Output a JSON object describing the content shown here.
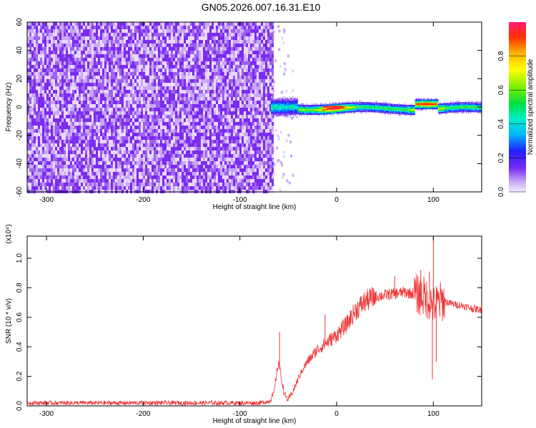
{
  "title": "GN05.2026.007.16.31.E10",
  "chart_data": [
    {
      "type": "heatmap",
      "xlabel": "Height of straight line (km)",
      "ylabel": "Frequency (Hz)",
      "xlim": [
        -320,
        150
      ],
      "ylim": [
        -60,
        60
      ],
      "xticks": [
        -300,
        -200,
        -100,
        0,
        100
      ],
      "yticks": [
        -60,
        -40,
        -20,
        0,
        20,
        40,
        60
      ],
      "colorbar": {
        "label": "Normalized spectral amplitude",
        "range": [
          0.0,
          1.0
        ],
        "ticks": [
          "0.0",
          "0.2",
          "0.4",
          "0.6",
          "0.8"
        ]
      },
      "regions": [
        {
          "x_range": [
            -320,
            -67
          ],
          "freq_range": [
            -60,
            60
          ],
          "amplitude": 0.05,
          "pattern": "noise"
        },
        {
          "x_range": [
            -68,
            150
          ],
          "center_freq": 0,
          "band_halfwidth_hz": 3,
          "amplitude_range": [
            0.4,
            0.95
          ]
        }
      ],
      "peaks": [
        {
          "x": -3,
          "freq": 0,
          "amplitude": 0.93
        },
        {
          "x": 93,
          "freq": 2,
          "amplitude": 0.9
        }
      ]
    },
    {
      "type": "line",
      "xlabel": "Height of straight line (km)",
      "ylabel": "SNR (10 * v/v)",
      "scale_label": "(x10⁴)",
      "xlim": [
        -320,
        150
      ],
      "ylim": [
        0,
        1.15
      ],
      "xticks": [
        -300,
        -200,
        -100,
        0,
        100
      ],
      "yticks": [
        "0.0",
        "0.2",
        "0.4",
        "0.6",
        "0.8",
        "1.0"
      ],
      "color": "#ee3333",
      "series": [
        {
          "x": [
            -320,
            -250,
            -180,
            -120,
            -80,
            -70,
            -65,
            -62,
            -60,
            -57,
            -54,
            -50,
            -45,
            -40,
            -35,
            -30,
            -20,
            -10,
            0,
            10,
            20,
            30,
            40,
            50,
            60,
            70,
            80,
            90,
            95,
            100,
            105,
            110,
            120,
            130,
            140,
            150
          ],
          "y": [
            0.02,
            0.02,
            0.02,
            0.02,
            0.02,
            0.03,
            0.08,
            0.22,
            0.3,
            0.18,
            0.08,
            0.04,
            0.1,
            0.18,
            0.25,
            0.3,
            0.38,
            0.43,
            0.48,
            0.55,
            0.65,
            0.71,
            0.74,
            0.75,
            0.76,
            0.77,
            0.76,
            0.74,
            0.72,
            0.68,
            0.7,
            0.71,
            0.69,
            0.68,
            0.66,
            0.65
          ]
        }
      ],
      "spikes": [
        {
          "x": -59,
          "y": 0.5
        },
        {
          "x": -12,
          "y": 0.62
        },
        {
          "x": 60,
          "y": 0.88
        },
        {
          "x": 87,
          "y": 0.92
        },
        {
          "x": 96,
          "y": 0.91
        },
        {
          "x": 100,
          "y": 1.15
        },
        {
          "x": 99,
          "y": 0.18
        },
        {
          "x": 103,
          "y": 0.3
        }
      ]
    }
  ]
}
